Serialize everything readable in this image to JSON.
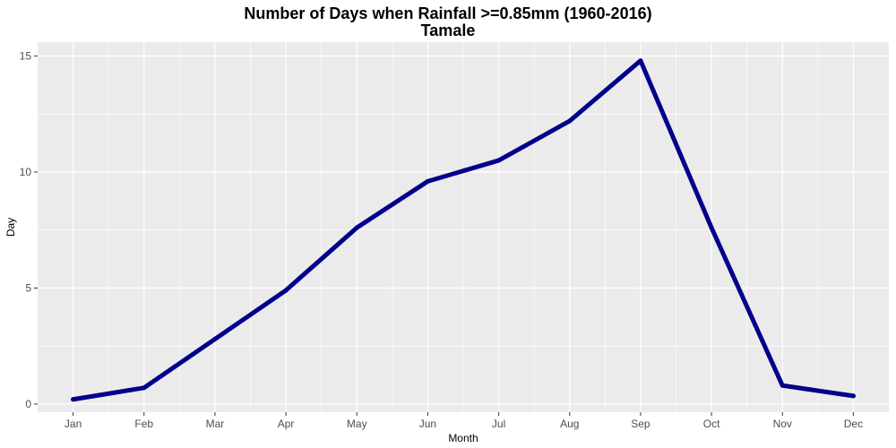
{
  "chart_data": {
    "type": "line",
    "title": "Number of Days when Rainfall >=0.85mm (1960-2016)",
    "subtitle": "Tamale",
    "xlabel": "Month",
    "ylabel": "Day",
    "categories": [
      "Jan",
      "Feb",
      "Mar",
      "Apr",
      "May",
      "Jun",
      "Jul",
      "Aug",
      "Sep",
      "Oct",
      "Nov",
      "Dec"
    ],
    "series": [
      {
        "values": [
          0.2,
          0.7,
          2.8,
          4.9,
          7.6,
          9.6,
          10.5,
          12.2,
          14.8,
          7.6,
          0.8,
          0.35
        ]
      }
    ],
    "ylim": [
      -0.35,
      15.6
    ],
    "yticks": [
      0,
      5,
      10,
      15
    ],
    "grid": true,
    "line_color": "#00008B",
    "panel_color": "#EBEBEB",
    "grid_color": "#FFFFFF"
  }
}
